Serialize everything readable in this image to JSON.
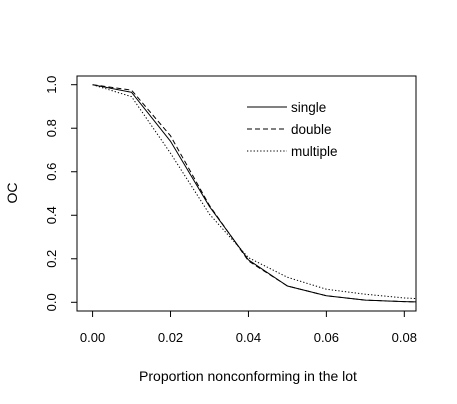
{
  "chart_data": {
    "type": "line",
    "title": "",
    "xlabel": "Proportion nonconforming in the lot",
    "ylabel": "OC",
    "xlim": [
      -0.004,
      0.083
    ],
    "ylim": [
      -0.04,
      1.04
    ],
    "x_ticks": [
      "0.00",
      "0.02",
      "0.04",
      "0.06",
      "0.08"
    ],
    "y_ticks": [
      "0.0",
      "0.2",
      "0.4",
      "0.6",
      "0.8",
      "1.0"
    ],
    "grid": false,
    "legend_position": "top-right",
    "series": [
      {
        "name": "single",
        "style": "solid",
        "x": [
          0.0,
          0.01,
          0.02,
          0.03,
          0.04,
          0.05,
          0.06,
          0.07,
          0.08,
          0.083
        ],
        "y": [
          1.0,
          0.965,
          0.74,
          0.44,
          0.195,
          0.075,
          0.03,
          0.01,
          0.003,
          0.002
        ]
      },
      {
        "name": "double",
        "style": "dashed",
        "x": [
          0.0,
          0.01,
          0.02,
          0.03,
          0.04,
          0.05,
          0.06,
          0.07,
          0.08,
          0.083
        ],
        "y": [
          1.0,
          0.975,
          0.765,
          0.445,
          0.19,
          0.075,
          0.03,
          0.01,
          0.003,
          0.002
        ]
      },
      {
        "name": "multiple",
        "style": "dotted",
        "x": [
          0.0,
          0.01,
          0.02,
          0.03,
          0.04,
          0.05,
          0.06,
          0.07,
          0.08,
          0.083
        ],
        "y": [
          1.0,
          0.945,
          0.685,
          0.405,
          0.205,
          0.115,
          0.06,
          0.037,
          0.02,
          0.017
        ]
      }
    ]
  }
}
